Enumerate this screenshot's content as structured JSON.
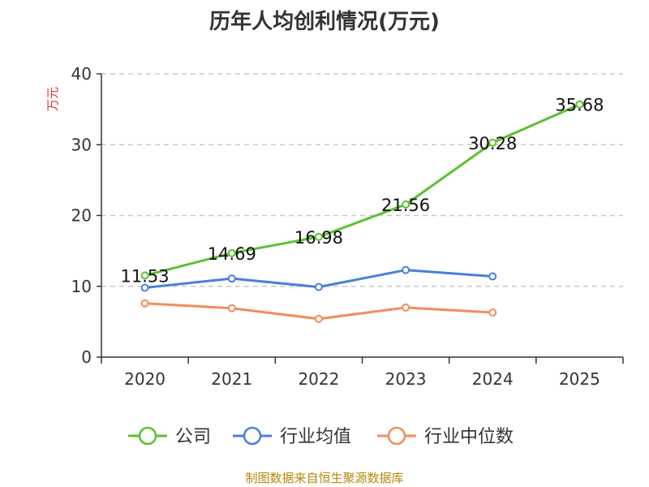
{
  "chart_data": {
    "type": "line",
    "title": "历年人均创利情况(万元)",
    "ylabel": "万元",
    "xlabel": "",
    "ylim": [
      0,
      40
    ],
    "yticks": [
      0,
      10,
      20,
      30,
      40
    ],
    "categories": [
      "2020",
      "2021",
      "2022",
      "2023",
      "2024",
      "2025"
    ],
    "series": [
      {
        "name": "公司",
        "color": "#5ac130",
        "values": [
          11.53,
          14.69,
          16.98,
          21.56,
          30.28,
          35.68
        ],
        "labels": [
          "11.53",
          "14.69",
          "16.98",
          "21.56",
          "30.28",
          "35.68"
        ]
      },
      {
        "name": "行业均值",
        "color": "#4a7fdb",
        "values": [
          9.8,
          11.1,
          9.9,
          12.3,
          11.4,
          null
        ]
      },
      {
        "name": "行业中位数",
        "color": "#f28c5b",
        "values": [
          7.6,
          6.9,
          5.4,
          7.0,
          6.3,
          null
        ]
      }
    ],
    "grid": true,
    "legend_position": "bottom"
  },
  "footer": {
    "source": "制图数据来自恒生聚源数据库"
  },
  "colors": {
    "ylabel": "#e03030",
    "grid": "#c8c8c8",
    "axis": "#333333"
  }
}
